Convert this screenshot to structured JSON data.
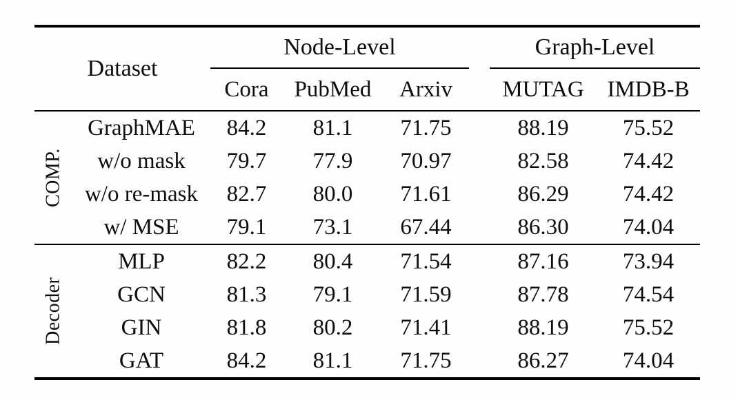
{
  "figure": {
    "header": {
      "dataset_label": "Dataset",
      "node_level": {
        "label": "Node-Level",
        "columns": [
          "Cora",
          "PubMed",
          "Arxiv"
        ]
      },
      "graph_level": {
        "label": "Graph-Level",
        "columns": [
          "MUTAG",
          "IMDB-B"
        ]
      }
    },
    "sections": [
      {
        "label": "COMP.",
        "rows": [
          {
            "name": "GraphMAE",
            "values": [
              "84.2",
              "81.1",
              "71.75",
              "88.19",
              "75.52"
            ]
          },
          {
            "name": "w/o mask",
            "values": [
              "79.7",
              "77.9",
              "70.97",
              "82.58",
              "74.42"
            ]
          },
          {
            "name": "w/o re-mask",
            "values": [
              "82.7",
              "80.0",
              "71.61",
              "86.29",
              "74.42"
            ]
          },
          {
            "name": "w/ MSE",
            "values": [
              "79.1",
              "73.1",
              "67.44",
              "86.30",
              "74.04"
            ]
          }
        ]
      },
      {
        "label": "Decoder",
        "rows": [
          {
            "name": "MLP",
            "values": [
              "82.2",
              "80.4",
              "71.54",
              "87.16",
              "73.94"
            ]
          },
          {
            "name": "GCN",
            "values": [
              "81.3",
              "79.1",
              "71.59",
              "87.78",
              "74.54"
            ]
          },
          {
            "name": "GIN",
            "values": [
              "81.8",
              "80.2",
              "71.41",
              "88.19",
              "75.52"
            ]
          },
          {
            "name": "GAT",
            "values": [
              "84.2",
              "81.1",
              "71.75",
              "86.27",
              "74.04"
            ]
          }
        ]
      }
    ],
    "colors": {
      "text": "#0e0e0e",
      "rule": "#000000",
      "background": "#fefefe"
    }
  }
}
